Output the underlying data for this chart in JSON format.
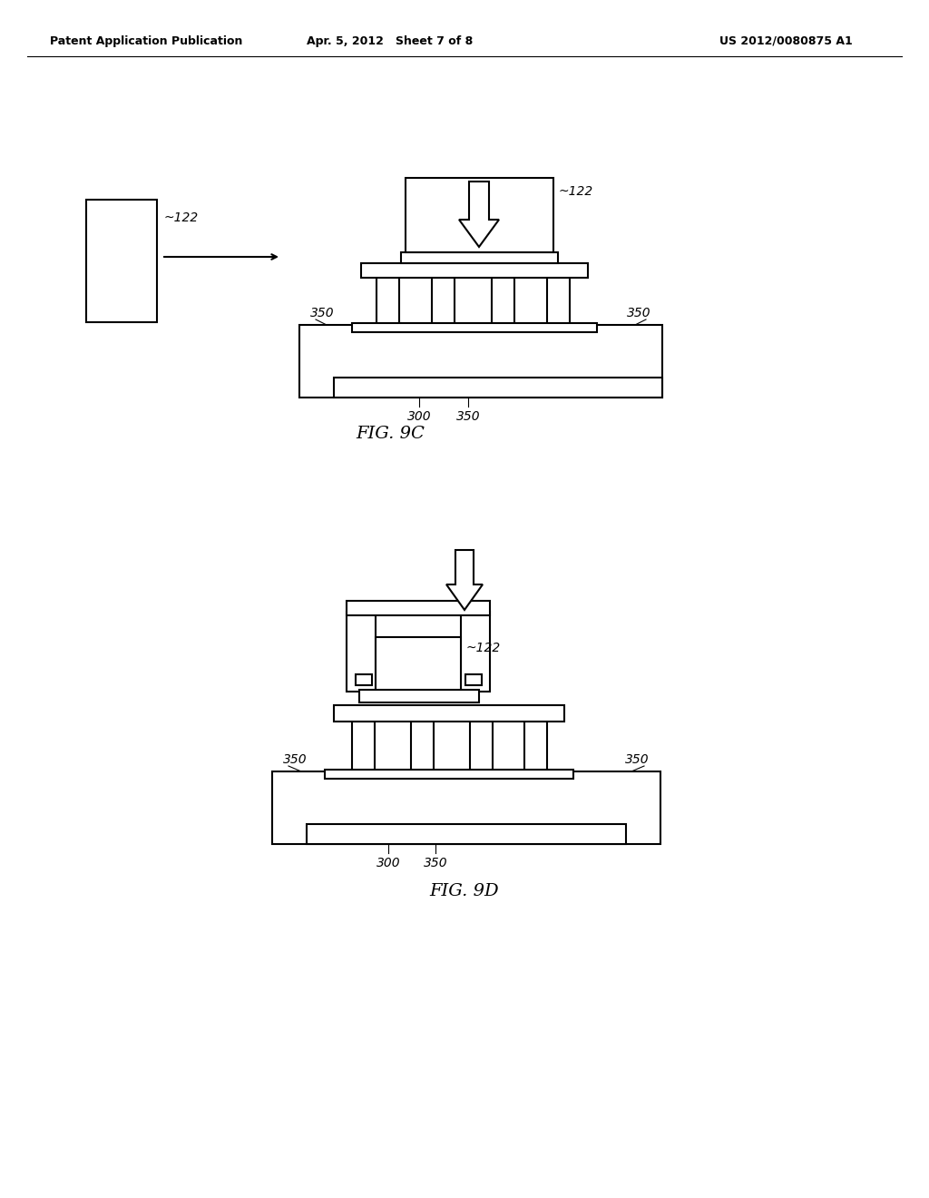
{
  "bg_color": "#ffffff",
  "line_color": "#000000",
  "header_left": "Patent Application Publication",
  "header_mid": "Apr. 5, 2012   Sheet 7 of 8",
  "header_right": "US 2012/0080875 A1",
  "fig9c_label": "FIG. 9C",
  "fig9d_label": "FIG. 9D",
  "label_122a": "122",
  "label_122b": "122",
  "label_122c": "122",
  "label_300a": "300",
  "label_350a1": "350",
  "label_350a2": "350",
  "label_350a3": "350",
  "label_300b": "300",
  "label_350b1": "350",
  "label_350b2": "350",
  "label_350b3": "350"
}
